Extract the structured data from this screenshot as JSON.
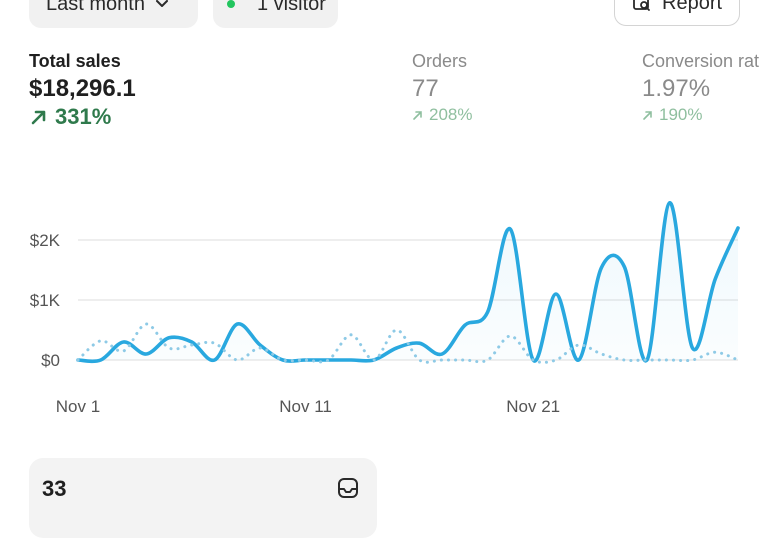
{
  "filters": {
    "period_label": "Last month",
    "visitors_label": "1 visitor",
    "report_label": "Report"
  },
  "metrics": {
    "sales": {
      "label": "Total sales",
      "value": "$18,296.1",
      "change": "331%"
    },
    "orders": {
      "label": "Orders",
      "value": "77",
      "change": "208%"
    },
    "conversion": {
      "label": "Conversion rat",
      "value": "1.97%",
      "change": "190%"
    }
  },
  "chart_data": {
    "type": "line",
    "x": [
      1,
      2,
      3,
      4,
      5,
      6,
      7,
      8,
      9,
      10,
      11,
      12,
      13,
      14,
      15,
      16,
      17,
      18,
      19,
      20,
      21,
      22,
      23,
      24,
      25,
      26,
      27,
      28,
      29,
      30
    ],
    "x_tick_labels": [
      "Nov 1",
      "Nov 11",
      "Nov 21"
    ],
    "y_tick_labels": [
      "$0",
      "$1K",
      "$2K"
    ],
    "ylim": [
      0,
      2700
    ],
    "grid": true,
    "series": [
      {
        "style": "solid",
        "color": "#29a8df",
        "values": [
          0,
          0,
          300,
          100,
          370,
          300,
          0,
          600,
          250,
          0,
          0,
          0,
          0,
          0,
          200,
          280,
          100,
          580,
          800,
          2180,
          0,
          1100,
          0,
          1540,
          1560,
          0,
          2620,
          200,
          1350,
          2200
        ]
      },
      {
        "style": "dotted",
        "color": "#8ecae6",
        "values": [
          0,
          320,
          150,
          600,
          200,
          250,
          280,
          0,
          200,
          0,
          0,
          0,
          420,
          0,
          500,
          0,
          0,
          0,
          0,
          400,
          0,
          0,
          250,
          100,
          0,
          0,
          0,
          0,
          130,
          0
        ]
      }
    ]
  },
  "card": {
    "value": "33"
  }
}
